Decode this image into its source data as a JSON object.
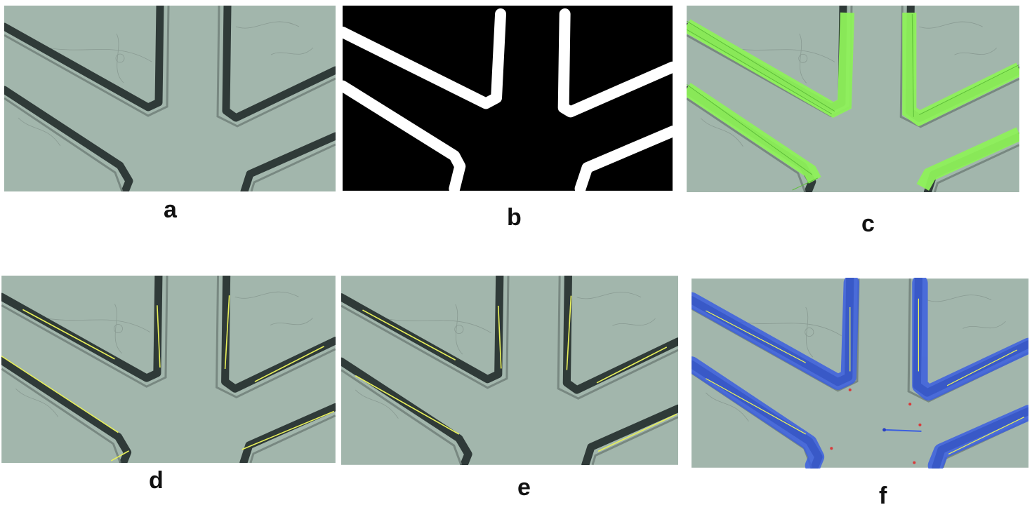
{
  "figure": {
    "panels": [
      {
        "id": "a",
        "label": "a",
        "kind": "micrograph"
      },
      {
        "id": "b",
        "label": "b",
        "kind": "binary-mask"
      },
      {
        "id": "c",
        "label": "c",
        "kind": "green-fill-overlay"
      },
      {
        "id": "d",
        "label": "d",
        "kind": "line-overlay"
      },
      {
        "id": "e",
        "label": "e",
        "kind": "line-overlay"
      },
      {
        "id": "f",
        "label": "f",
        "kind": "blue-overlay"
      }
    ],
    "colors": {
      "substrate": "#9fb3aa",
      "channel_wall": "#2f3a38",
      "mask_fg": "#ffffff",
      "mask_bg": "#000000",
      "green_fill": "#8ef25a",
      "yellow_line": "#e8f05a",
      "blue_overlay": "#3b5fe0",
      "red_dot": "#d83a3a"
    }
  }
}
